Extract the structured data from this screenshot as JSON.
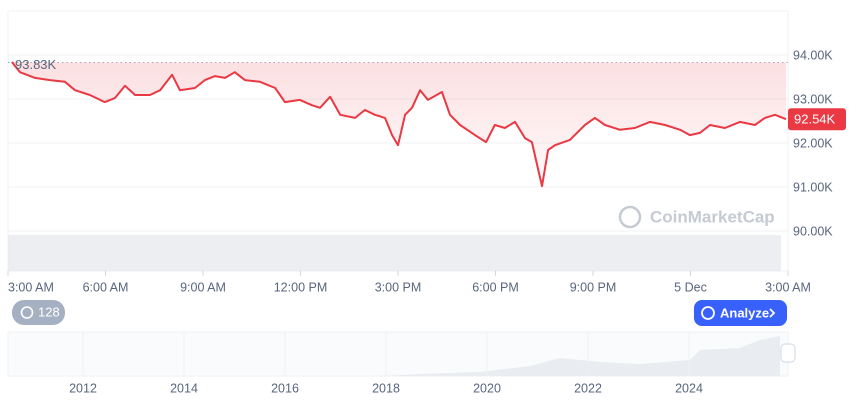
{
  "chart_data": {
    "type": "line",
    "x": [
      0.12,
      0.37,
      0.83,
      1.29,
      1.75,
      2.06,
      2.52,
      2.98,
      3.29,
      3.6,
      3.91,
      4.37,
      4.68,
      5.05,
      5.29,
      5.75,
      6.06,
      6.37,
      6.68,
      6.98,
      7.29,
      7.75,
      8.22,
      8.52,
      8.98,
      9.35,
      9.6,
      9.91,
      10.22,
      10.68,
      10.98,
      11.29,
      11.6,
      11.82,
      12,
      12.22,
      12.43,
      12.68,
      12.92,
      13.14,
      13.35,
      13.6,
      13.91,
      14.37,
      14.71,
      14.98,
      15.29,
      15.6,
      15.91,
      16.12,
      16.43,
      16.62,
      16.83,
      17.29,
      17.75,
      18.06,
      18.37,
      18.83,
      19.29,
      19.75,
      20.22,
      20.68,
      20.98,
      21.29,
      21.6,
      22.06,
      22.52,
      22.98,
      23.29,
      23.6,
      23.94
    ],
    "series": [
      {
        "color": "#ea3943",
        "values": [
          93840,
          93610,
          93480,
          93430,
          93390,
          93200,
          93090,
          92930,
          93020,
          93300,
          93090,
          93090,
          93200,
          93550,
          93200,
          93250,
          93430,
          93520,
          93480,
          93610,
          93430,
          93390,
          93250,
          92930,
          92980,
          92860,
          92800,
          93050,
          92640,
          92570,
          92750,
          92640,
          92570,
          92180,
          91950,
          92640,
          92800,
          93200,
          92980,
          93070,
          93160,
          92640,
          92410,
          92180,
          92020,
          92410,
          92340,
          92480,
          92110,
          92020,
          91020,
          91840,
          91950,
          92070,
          92410,
          92570,
          92410,
          92300,
          92340,
          92480,
          92410,
          92300,
          92180,
          92230,
          92410,
          92340,
          92480,
          92410,
          92570,
          92640,
          92540
        ]
      }
    ],
    "xlim": [
      0,
      24
    ],
    "xticks": [
      {
        "value": 0,
        "label": "3:00 AM"
      },
      {
        "value": 3,
        "label": "6:00 AM"
      },
      {
        "value": 6,
        "label": "9:00 AM"
      },
      {
        "value": 9,
        "label": "12:00 PM"
      },
      {
        "value": 12,
        "label": "3:00 PM"
      },
      {
        "value": 15,
        "label": "6:00 PM"
      },
      {
        "value": 18,
        "label": "9:00 PM"
      },
      {
        "value": 21,
        "label": "5 Dec"
      },
      {
        "value": 24,
        "label": "3:00 AM"
      }
    ],
    "ylim": [
      89100,
      95000
    ],
    "yticks": [
      {
        "value": 94000,
        "label": "94.00K"
      },
      {
        "value": 93000,
        "label": "93.00K"
      },
      {
        "value": 92000,
        "label": "92.00K"
      },
      {
        "value": 91000,
        "label": "91.00K"
      },
      {
        "value": 90000,
        "label": "90.00K"
      }
    ],
    "grid": true,
    "reference": {
      "value": 93830,
      "label": "93.83K"
    },
    "current": {
      "value": 92540,
      "label": "92.54K"
    },
    "watermark": "CoinMarketCap"
  },
  "controls": {
    "history_count": "128",
    "analyze": "Analyze"
  },
  "navigator": {
    "years": [
      "2012",
      "2014",
      "2016",
      "2018",
      "2020",
      "2022",
      "2024"
    ]
  }
}
